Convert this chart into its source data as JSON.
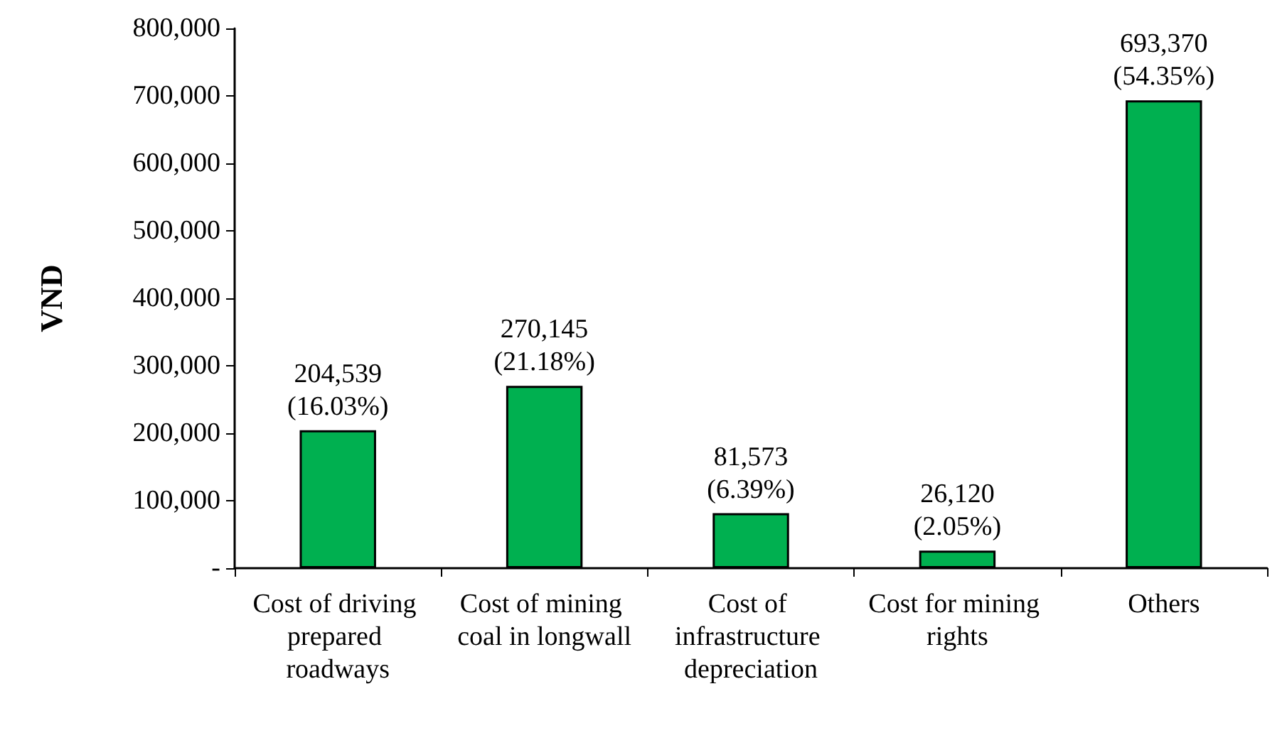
{
  "chart_data": {
    "type": "bar",
    "ylabel": "VND",
    "categories": [
      "Cost of driving prepared roadways",
      "Cost of mining coal in longwall",
      "Cost of infrastructure depreciation",
      "Cost for mining rights",
      "Others"
    ],
    "values": [
      204539,
      270145,
      81573,
      26120,
      693370
    ],
    "value_labels": [
      "204,539\n(16.03%)",
      "270,145\n(21.18%)",
      "81,573\n(6.39%)",
      "26,120\n(2.05%)",
      "693,370\n(54.35%)"
    ],
    "color": "#00b050",
    "ylim": [
      0,
      800000
    ],
    "yticks": [
      {
        "value": 0,
        "label": "-"
      },
      {
        "value": 100000,
        "label": "100,000"
      },
      {
        "value": 200000,
        "label": "200,000"
      },
      {
        "value": 300000,
        "label": "300,000"
      },
      {
        "value": 400000,
        "label": "400,000"
      },
      {
        "value": 500000,
        "label": "500,000"
      },
      {
        "value": 600000,
        "label": "600,000"
      },
      {
        "value": 700000,
        "label": "700,000"
      },
      {
        "value": 800000,
        "label": "800,000"
      }
    ],
    "grid": false
  }
}
